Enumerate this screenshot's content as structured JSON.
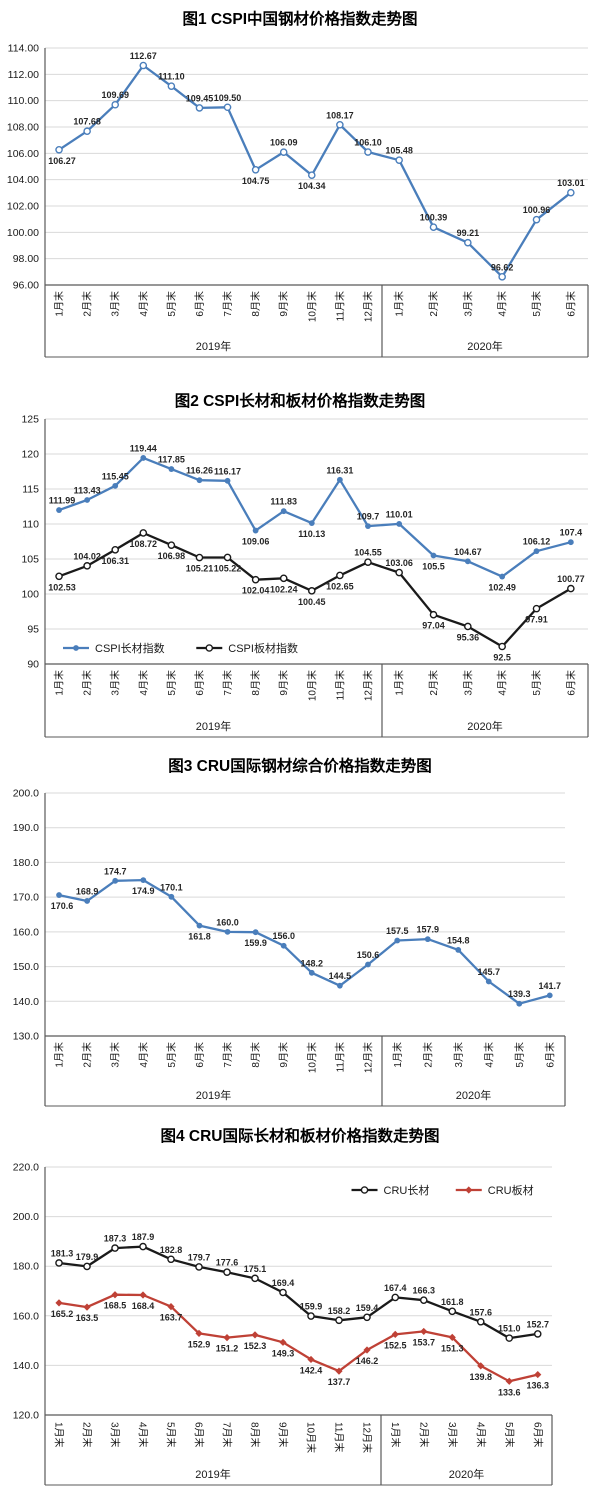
{
  "colors": {
    "blue": "#4a7ebb",
    "black": "#1a1a1a",
    "red": "#bf4136",
    "grid": "#d9d9d9",
    "axis": "#595959",
    "text": "#1a1a1a"
  },
  "chart_data": [
    {
      "type": "line",
      "title": "图1 CSPI中国钢材价格指数走势图",
      "categories": [
        "1月末",
        "2月末",
        "3月末",
        "4月末",
        "5月末",
        "6月末",
        "7月末",
        "8月末",
        "9月末",
        "10月末",
        "11月末",
        "12月末",
        "1月末",
        "2月末",
        "3月末",
        "4月末",
        "5月末",
        "6月末"
      ],
      "x_groups": [
        {
          "label": "2019年",
          "count": 12
        },
        {
          "label": "2020年",
          "count": 6
        }
      ],
      "ylim": [
        96,
        114
      ],
      "ytick_step": 2,
      "ytick_format": "fixed2",
      "grid": true,
      "label_format": "fixed2",
      "series": [
        {
          "name": "",
          "color": "#4a7ebb",
          "marker": "circle-open",
          "values": [
            106.27,
            107.68,
            109.69,
            112.67,
            111.1,
            109.45,
            109.5,
            104.75,
            106.09,
            104.34,
            108.17,
            106.1,
            105.48,
            100.39,
            99.21,
            96.62,
            100.96,
            103.01
          ],
          "label_sides": [
            "b",
            "a",
            "a",
            "a",
            "a",
            "a",
            "a",
            "b",
            "a",
            "b",
            "a",
            "a",
            "a",
            "a",
            "a",
            "a",
            "a",
            "a"
          ]
        }
      ]
    },
    {
      "type": "line",
      "title": "图2 CSPI长材和板材价格指数走势图",
      "categories": [
        "1月末",
        "2月末",
        "3月末",
        "4月末",
        "5月末",
        "6月末",
        "7月末",
        "8月末",
        "9月末",
        "10月末",
        "11月末",
        "12月末",
        "1月末",
        "2月末",
        "3月末",
        "4月末",
        "5月末",
        "6月末"
      ],
      "x_groups": [
        {
          "label": "2019年",
          "count": 12
        },
        {
          "label": "2020年",
          "count": 6
        }
      ],
      "ylim": [
        90,
        125
      ],
      "ytick_step": 5,
      "ytick_format": "int",
      "grid": true,
      "label_format": "auto",
      "legend": {
        "position": "bottom-left"
      },
      "series": [
        {
          "name": "CSPI长材指数",
          "color": "#4a7ebb",
          "marker": "circle-filled",
          "values": [
            111.99,
            113.43,
            115.45,
            119.44,
            117.85,
            116.26,
            116.17,
            109.06,
            111.83,
            110.13,
            116.31,
            109.7,
            110.01,
            105.5,
            104.67,
            102.49,
            106.12,
            107.4
          ],
          "label_sides": [
            "a",
            "a",
            "a",
            "a",
            "a",
            "a",
            "a",
            "b",
            "a",
            "b",
            "a",
            "a",
            "a",
            "b",
            "a",
            "b",
            "a",
            "a"
          ]
        },
        {
          "name": "CSPI板材指数",
          "color": "#1a1a1a",
          "marker": "circle-open",
          "values": [
            102.53,
            104.02,
            106.31,
            108.72,
            106.98,
            105.21,
            105.22,
            102.04,
            102.24,
            100.45,
            102.65,
            104.55,
            103.06,
            97.04,
            95.36,
            92.5,
            97.91,
            100.77
          ],
          "label_sides": [
            "b",
            "a",
            "b",
            "b",
            "b",
            "b",
            "b",
            "b",
            "b",
            "b",
            "b",
            "a",
            "a",
            "b",
            "b",
            "b",
            "b",
            "a"
          ]
        }
      ]
    },
    {
      "type": "line",
      "title": "图3 CRU国际钢材综合价格指数走势图",
      "categories": [
        "1月末",
        "2月末",
        "3月末",
        "4月末",
        "5月末",
        "6月末",
        "7月末",
        "8月末",
        "9月末",
        "10月末",
        "11月末",
        "12月末",
        "1月末",
        "2月末",
        "3月末",
        "4月末",
        "5月末",
        "6月末"
      ],
      "x_groups": [
        {
          "label": "2019年",
          "count": 12
        },
        {
          "label": "2020年",
          "count": 6
        }
      ],
      "ylim": [
        130,
        200
      ],
      "ytick_step": 10,
      "ytick_format": "fixed1",
      "grid": true,
      "label_format": "fixed1",
      "series": [
        {
          "name": "",
          "color": "#4a7ebb",
          "marker": "circle-filled",
          "values": [
            170.6,
            168.9,
            174.7,
            174.9,
            170.1,
            161.8,
            160.0,
            159.9,
            156.0,
            148.2,
            144.5,
            150.6,
            157.5,
            157.9,
            154.8,
            145.7,
            139.3,
            141.7
          ],
          "label_sides": [
            "b",
            "a",
            "a",
            "b",
            "a",
            "b",
            "a",
            "b",
            "a",
            "a",
            "a",
            "a",
            "a",
            "a",
            "a",
            "a",
            "a",
            "a"
          ]
        }
      ]
    },
    {
      "type": "line",
      "title": "图4 CRU国际长材和板材价格指数走势图",
      "categories": [
        "1月末",
        "2月末",
        "3月末",
        "4月末",
        "5月末",
        "6月末",
        "7月末",
        "8月末",
        "9月末",
        "10月末",
        "11月末",
        "12月末",
        "1月末",
        "2月末",
        "3月末",
        "4月末",
        "5月末",
        "6月末"
      ],
      "x_groups": [
        {
          "label": "2019年",
          "count": 12
        },
        {
          "label": "2020年",
          "count": 6
        }
      ],
      "ylim": [
        120,
        220
      ],
      "ytick_step": 20,
      "ytick_format": "fixed1",
      "grid": true,
      "label_format": "fixed1",
      "legend": {
        "position": "top-right"
      },
      "series": [
        {
          "name": "CRU长材",
          "color": "#1a1a1a",
          "marker": "circle-open",
          "values": [
            181.3,
            179.9,
            187.3,
            187.9,
            182.8,
            179.7,
            177.6,
            175.1,
            169.4,
            159.9,
            158.2,
            159.4,
            167.4,
            166.3,
            161.8,
            157.6,
            151.0,
            152.7
          ],
          "label_sides": [
            "a",
            "a",
            "a",
            "a",
            "a",
            "a",
            "a",
            "a",
            "a",
            "a",
            "a",
            "a",
            "a",
            "a",
            "a",
            "a",
            "a",
            "a"
          ]
        },
        {
          "name": "CRU板材",
          "color": "#bf4136",
          "marker": "diamond-filled",
          "values": [
            165.2,
            163.5,
            168.5,
            168.4,
            163.7,
            152.9,
            151.2,
            152.3,
            149.3,
            142.4,
            137.7,
            146.2,
            152.5,
            153.7,
            151.3,
            139.8,
            133.6,
            136.3
          ],
          "label_sides": [
            "b",
            "b",
            "b",
            "b",
            "b",
            "b",
            "b",
            "b",
            "b",
            "b",
            "b",
            "b",
            "b",
            "b",
            "b",
            "b",
            "b",
            "b"
          ]
        }
      ]
    }
  ]
}
